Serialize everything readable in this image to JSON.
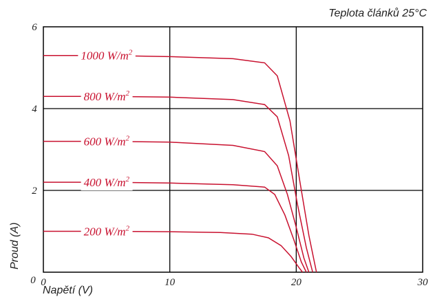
{
  "chart_data": {
    "type": "line",
    "annotation": "Teplota článků 25°C",
    "xlabel": "Napětí (V)",
    "ylabel": "Proud (A)",
    "xlim": [
      0,
      30
    ],
    "ylim": [
      0,
      6
    ],
    "x_ticks": [
      "0",
      "10",
      "20",
      "30"
    ],
    "y_ticks": [
      "2",
      "4",
      "6"
    ],
    "grid": true,
    "line_color": "#c8102e",
    "series": [
      {
        "name": "1000 W/m²",
        "label_text": "1000 W/m",
        "label_sup": "2",
        "label_x": 5.0,
        "x": [
          0,
          5,
          10,
          15,
          17.5,
          18.5,
          19.5,
          20.3,
          21.0,
          21.6
        ],
        "y": [
          5.3,
          5.3,
          5.27,
          5.22,
          5.12,
          4.8,
          3.7,
          2.2,
          0.9,
          0.0
        ]
      },
      {
        "name": "800 W/m²",
        "label_text": "800 W/m",
        "label_sup": "2",
        "label_x": 5.0,
        "x": [
          0,
          5,
          10,
          15,
          17.5,
          18.5,
          19.4,
          20.1,
          20.8,
          21.3
        ],
        "y": [
          4.3,
          4.3,
          4.28,
          4.22,
          4.1,
          3.8,
          2.85,
          1.65,
          0.6,
          0.0
        ]
      },
      {
        "name": "600 W/m²",
        "label_text": "600 W/m",
        "label_sup": "2",
        "label_x": 5.0,
        "x": [
          0,
          5,
          10,
          15,
          17.5,
          18.5,
          19.3,
          20.0,
          20.6,
          21.0
        ],
        "y": [
          3.2,
          3.2,
          3.18,
          3.1,
          2.95,
          2.6,
          1.9,
          1.1,
          0.35,
          0.0
        ]
      },
      {
        "name": "400 W/m²",
        "label_text": "400 W/m",
        "label_sup": "2",
        "label_x": 5.0,
        "x": [
          0,
          5,
          10,
          15,
          17.5,
          18.3,
          19.1,
          19.8,
          20.4,
          20.8
        ],
        "y": [
          2.2,
          2.2,
          2.18,
          2.14,
          2.08,
          1.9,
          1.4,
          0.8,
          0.25,
          0.0
        ]
      },
      {
        "name": "200 W/m²",
        "label_text": "200 W/m",
        "label_sup": "2",
        "label_x": 5.0,
        "x": [
          0,
          5,
          10,
          14,
          16.5,
          17.8,
          18.8,
          19.6,
          20.2,
          20.5
        ],
        "y": [
          1.0,
          1.0,
          0.99,
          0.97,
          0.93,
          0.84,
          0.65,
          0.38,
          0.12,
          0.0
        ]
      }
    ]
  }
}
